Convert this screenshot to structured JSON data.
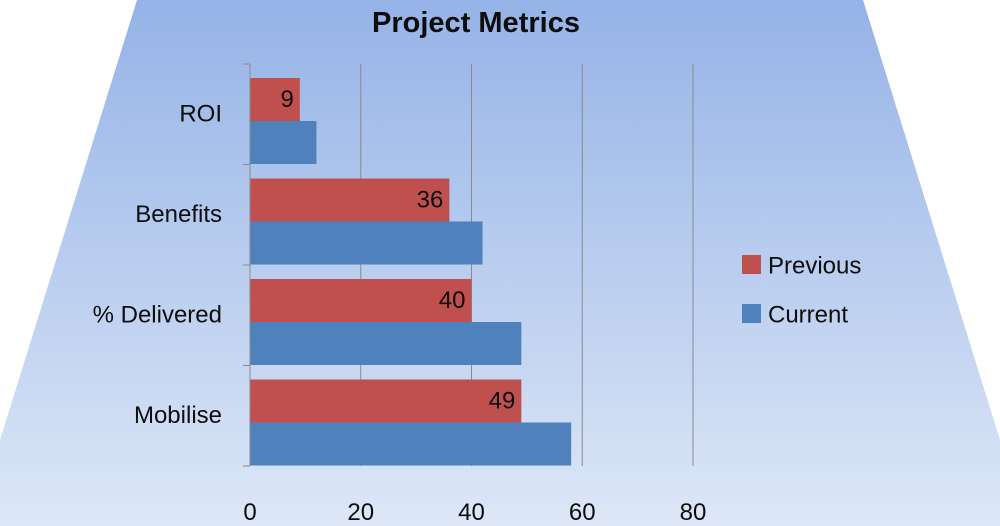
{
  "chart_data": {
    "type": "bar",
    "orientation": "horizontal",
    "title": "Project Metrics",
    "categories": [
      "ROI",
      "Benefits",
      "% Delivered",
      "Mobilise"
    ],
    "series": [
      {
        "name": "Previous",
        "color": "#c0504d",
        "values": [
          9,
          36,
          40,
          49
        ],
        "data_labels": [
          "9",
          "36",
          "40",
          "49"
        ]
      },
      {
        "name": "Current",
        "color": "#4f81bd",
        "values": [
          12,
          42,
          49,
          58
        ]
      }
    ],
    "xlim": [
      0,
      80
    ],
    "x_ticks": [
      "0",
      "20",
      "40",
      "60",
      "80"
    ],
    "grid": true,
    "legend_position": "right",
    "background": {
      "gradient_top": "#95b3e7",
      "gradient_bottom": "#dde7f7",
      "shape": "trapezoid"
    }
  }
}
